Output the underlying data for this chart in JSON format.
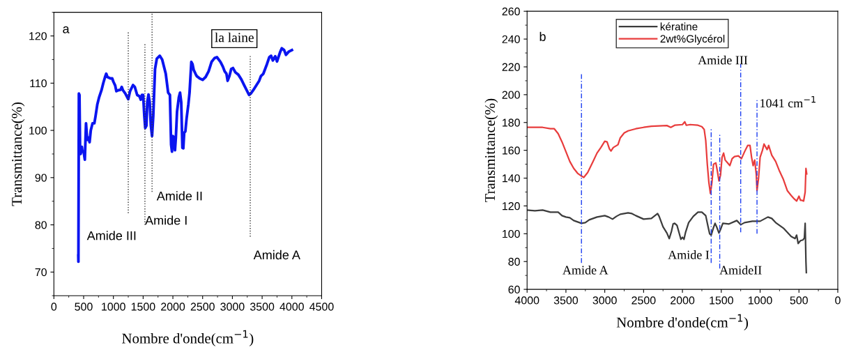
{
  "chart_data": [
    {
      "type": "line",
      "xlabel": "Nombre d'onde(cm$^{−1}$)",
      "ylabel": "Transmittance(%)",
      "xlim": [
        0,
        4500
      ],
      "xticks": [
        0,
        500,
        1000,
        1500,
        2000,
        2500,
        3000,
        3500,
        4000,
        4500
      ],
      "ylim": [
        65,
        125
      ],
      "yticks": [
        70,
        80,
        90,
        100,
        110,
        120
      ],
      "grid": false,
      "legend": false,
      "marker": "none",
      "series": [
        {
          "color": "#0a14f0",
          "line_style": "solid",
          "x": [
            410,
            412,
            420,
            430,
            440,
            450,
            470,
            480,
            500,
            520,
            540,
            560,
            580,
            600,
            620,
            650,
            680,
            700,
            730,
            760,
            800,
            830,
            860,
            880,
            900,
            950,
            980,
            1000,
            1030,
            1050,
            1080,
            1120,
            1140,
            1160,
            1200,
            1250,
            1280,
            1330,
            1360,
            1400,
            1440,
            1460,
            1480,
            1500,
            1520,
            1535,
            1555,
            1570,
            1590,
            1610,
            1630,
            1650,
            1670,
            1700,
            1730,
            1780,
            1820,
            1880,
            1920,
            1950,
            1970,
            1985,
            2000,
            2020,
            2035,
            2050,
            2070,
            2100,
            2120,
            2140,
            2160,
            2175,
            2190,
            2210,
            2230,
            2260,
            2280,
            2310,
            2330,
            2350,
            2380,
            2400,
            2450,
            2500,
            2550,
            2600,
            2650,
            2700,
            2740,
            2800,
            2840,
            2870,
            2900,
            2920,
            2950,
            2980,
            3010,
            3050,
            3100,
            3150,
            3200,
            3240,
            3280,
            3310,
            3350,
            3400,
            3450,
            3480,
            3520,
            3550,
            3580,
            3620,
            3650,
            3680,
            3720,
            3750,
            3800,
            3830,
            3870,
            3900,
            3950,
            4000
          ],
          "values": [
            73.5,
            72.2,
            107.8,
            107.5,
            96,
            95,
            96.5,
            95.5,
            95.5,
            93.8,
            101.5,
            98,
            98.5,
            97.5,
            100,
            101.5,
            101.5,
            103,
            105.5,
            107,
            108.5,
            110,
            111.3,
            112,
            111.3,
            111,
            111,
            110.3,
            109.5,
            108.3,
            108.5,
            108.6,
            109.2,
            108.5,
            107.8,
            106.6,
            108.3,
            109.6,
            109.2,
            107.5,
            107.2,
            106.5,
            107.5,
            107.5,
            103,
            100.5,
            101,
            106,
            107.6,
            106,
            101,
            98.8,
            103,
            113,
            115.2,
            115.8,
            115,
            112,
            108,
            107.5,
            97,
            95.5,
            98.8,
            98.5,
            95.8,
            98.5,
            104,
            107,
            108,
            106,
            96.3,
            96.2,
            99.5,
            99.8,
            102.5,
            105.5,
            108,
            114.5,
            114,
            112.8,
            112,
            111.5,
            111,
            110.7,
            111.3,
            112.5,
            114.5,
            115.3,
            115.5,
            114.5,
            113.5,
            112.5,
            112,
            110.5,
            111.5,
            113,
            113.2,
            112.3,
            111.8,
            110.8,
            109.5,
            108.5,
            107.5,
            107.8,
            108.5,
            109.5,
            110.5,
            111.5,
            112,
            113,
            114,
            115.5,
            115.8,
            114.8,
            115.7,
            114.6,
            116.5,
            117.4,
            117,
            116,
            116.7,
            117
          ]
        },
        {
          "color": "#333333",
          "line_style": "dotted",
          "x": [
            1250,
            1250
          ],
          "values": [
            82.5,
            121
          ]
        },
        {
          "color": "#333333",
          "line_style": "dotted",
          "x": [
            1530,
            1530
          ],
          "values": [
            80,
            118.5
          ]
        },
        {
          "color": "#333333",
          "line_style": "dotted",
          "x": [
            1650,
            1650
          ],
          "values": [
            87,
            125
          ]
        },
        {
          "color": "#333333",
          "line_style": "dotted",
          "x": [
            3300,
            3300
          ],
          "values": [
            77.5,
            116
          ]
        }
      ],
      "annotations": [
        "a",
        "la laine",
        "Amide III",
        "Amide I",
        "Amide II",
        "Amide A"
      ]
    },
    {
      "type": "line",
      "xlabel": "Nombre d'onde(cm$^{−1}$)",
      "ylabel": "Transmittance(%)",
      "xlim": [
        4000,
        0
      ],
      "xticks": [
        4000,
        3500,
        3000,
        2500,
        2000,
        1500,
        1000,
        500,
        0
      ],
      "ylim": [
        60,
        260
      ],
      "yticks": [
        60,
        80,
        100,
        120,
        140,
        160,
        180,
        200,
        220,
        240,
        260
      ],
      "grid": false,
      "legend": "top left",
      "marker": "none",
      "series": [
        {
          "name": "kératine",
          "color": "#3c3c3c",
          "line_style": "solid",
          "x": [
            4000,
            3900,
            3800,
            3700,
            3600,
            3550,
            3500,
            3450,
            3400,
            3300,
            3250,
            3200,
            3100,
            3000,
            2950,
            2900,
            2850,
            2800,
            2700,
            2650,
            2600,
            2500,
            2400,
            2320,
            2300,
            2250,
            2200,
            2170,
            2140,
            2120,
            2100,
            2070,
            2040,
            2020,
            2000,
            1980,
            1960,
            1920,
            1860,
            1800,
            1750,
            1700,
            1670,
            1650,
            1630,
            1600,
            1580,
            1560,
            1530,
            1510,
            1480,
            1400,
            1300,
            1250,
            1200,
            1100,
            1000,
            900,
            850,
            800,
            700,
            600,
            550,
            530,
            510,
            480,
            450,
            430,
            420,
            410,
            405
          ],
          "values": [
            117,
            116.5,
            117,
            115.5,
            115.5,
            113,
            112,
            111.5,
            109.5,
            107.5,
            108,
            110,
            112,
            113,
            112,
            110.5,
            112.5,
            114,
            115,
            114.5,
            113,
            110.5,
            111,
            114.5,
            112.5,
            105,
            100.5,
            96.5,
            102,
            107,
            107.5,
            106,
            100,
            96,
            97.5,
            96,
            101,
            108,
            112.5,
            115.5,
            115.5,
            113,
            105,
            100,
            99,
            104.5,
            107.5,
            105,
            100.5,
            103,
            107.5,
            107,
            109.5,
            106.5,
            108,
            109,
            109,
            112,
            111,
            108,
            104,
            98,
            96.5,
            99,
            93,
            95,
            95.5,
            97,
            107.5,
            80,
            72
          ]
        },
        {
          "name": "2wt%Glycérol",
          "color": "#e83c3c",
          "line_style": "solid",
          "x": [
            4000,
            3900,
            3800,
            3700,
            3650,
            3600,
            3550,
            3500,
            3450,
            3400,
            3350,
            3300,
            3270,
            3220,
            3150,
            3100,
            3050,
            3000,
            2970,
            2940,
            2920,
            2890,
            2860,
            2830,
            2800,
            2750,
            2700,
            2600,
            2500,
            2400,
            2300,
            2200,
            2150,
            2100,
            2000,
            1970,
            1950,
            1900,
            1800,
            1750,
            1720,
            1700,
            1680,
            1660,
            1640,
            1620,
            1600,
            1570,
            1550,
            1530,
            1510,
            1490,
            1470,
            1450,
            1420,
            1390,
            1360,
            1330,
            1280,
            1260,
            1240,
            1200,
            1160,
            1130,
            1110,
            1090,
            1070,
            1050,
            1040,
            1020,
            1000,
            970,
            950,
            930,
            910,
            890,
            870,
            850,
            800,
            750,
            700,
            650,
            600,
            560,
            530,
            500,
            480,
            460,
            440,
            420,
            410,
            400
          ],
          "values": [
            176.5,
            176.5,
            176.5,
            175.5,
            175.5,
            172,
            166,
            159,
            152,
            147,
            143.5,
            141.5,
            140.5,
            144,
            152,
            158,
            162,
            166.5,
            166,
            161,
            159.5,
            162,
            163,
            164,
            169,
            172.5,
            174,
            175.5,
            176.5,
            177.3,
            177.5,
            177.8,
            176.5,
            178,
            178.5,
            180.5,
            178,
            178.5,
            178,
            177,
            175,
            167,
            150,
            137,
            129,
            137,
            150,
            151,
            145,
            138,
            142,
            155,
            158,
            153,
            151,
            149,
            154,
            155.5,
            156,
            155,
            154,
            159,
            163.5,
            163.5,
            155,
            149,
            153,
            143,
            131,
            140,
            155,
            160,
            164.5,
            162.5,
            160.5,
            163.5,
            160,
            156.5,
            152,
            145,
            139,
            131,
            127.5,
            125,
            123.5,
            127,
            124,
            124,
            123.5,
            130,
            147,
            143
          ]
        },
        {
          "color": "#1a3cf0",
          "line_style": "dashed",
          "x": [
            3300,
            3300
          ],
          "values": [
            79,
            215
          ]
        },
        {
          "color": "#1a3cf0",
          "line_style": "dashed",
          "x": [
            1630,
            1630
          ],
          "values": [
            79,
            176
          ]
        },
        {
          "color": "#1a3cf0",
          "line_style": "dashed",
          "x": [
            1520,
            1520
          ],
          "values": [
            75,
            172
          ]
        },
        {
          "color": "#1a3cf0",
          "line_style": "dashed",
          "x": [
            1250,
            1250
          ],
          "values": [
            101,
            222
          ]
        },
        {
          "color": "#1a3cf0",
          "line_style": "dashed",
          "x": [
            1040,
            1040
          ],
          "values": [
            100,
            196
          ]
        }
      ],
      "annotations": [
        "b",
        "Amide III",
        "1041 cm$^{−1}$",
        "Amide A",
        "Amide I",
        "AmideII"
      ]
    }
  ]
}
